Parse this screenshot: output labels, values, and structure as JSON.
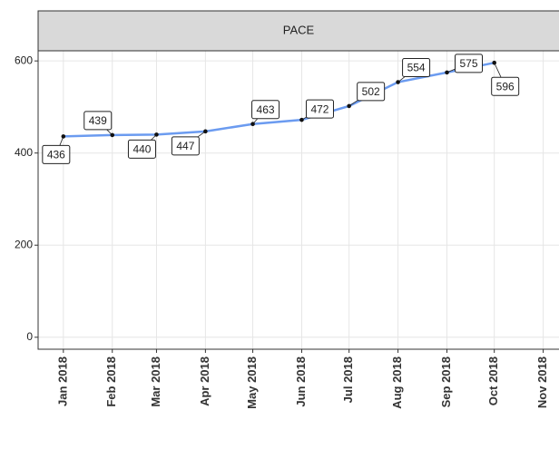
{
  "chart_data": {
    "type": "line",
    "strip_title": "PACE",
    "x": [
      "2018-01-01",
      "2018-02-01",
      "2018-03-01",
      "2018-04-01",
      "2018-05-01",
      "2018-06-01",
      "2018-07-01",
      "2018-08-01",
      "2018-09-01",
      "2018-10-01"
    ],
    "series": [
      {
        "color": "#6b9bf0",
        "values": [
          436,
          439,
          440,
          447,
          463,
          472,
          502,
          554,
          575,
          596
        ]
      }
    ],
    "xlim": [
      "2017-12-16",
      "2018-11-11"
    ],
    "xticks": [
      {
        "value": "2018-01-01",
        "label": "Jan 2018"
      },
      {
        "value": "2018-02-01",
        "label": "Feb 2018"
      },
      {
        "value": "2018-03-01",
        "label": "Mar 2018"
      },
      {
        "value": "2018-04-01",
        "label": "Apr 2018"
      },
      {
        "value": "2018-05-01",
        "label": "May 2018"
      },
      {
        "value": "2018-06-01",
        "label": "Jun 2018"
      },
      {
        "value": "2018-07-01",
        "label": "Jul 2018"
      },
      {
        "value": "2018-08-01",
        "label": "Aug 2018"
      },
      {
        "value": "2018-09-01",
        "label": "Sep 2018"
      },
      {
        "value": "2018-10-01",
        "label": "Oct 2018"
      },
      {
        "value": "2018-11-01",
        "label": "Nov 2018"
      }
    ],
    "ylim": [
      -26,
      622
    ],
    "yticks": [
      0,
      200,
      400,
      600
    ],
    "grid": true
  }
}
